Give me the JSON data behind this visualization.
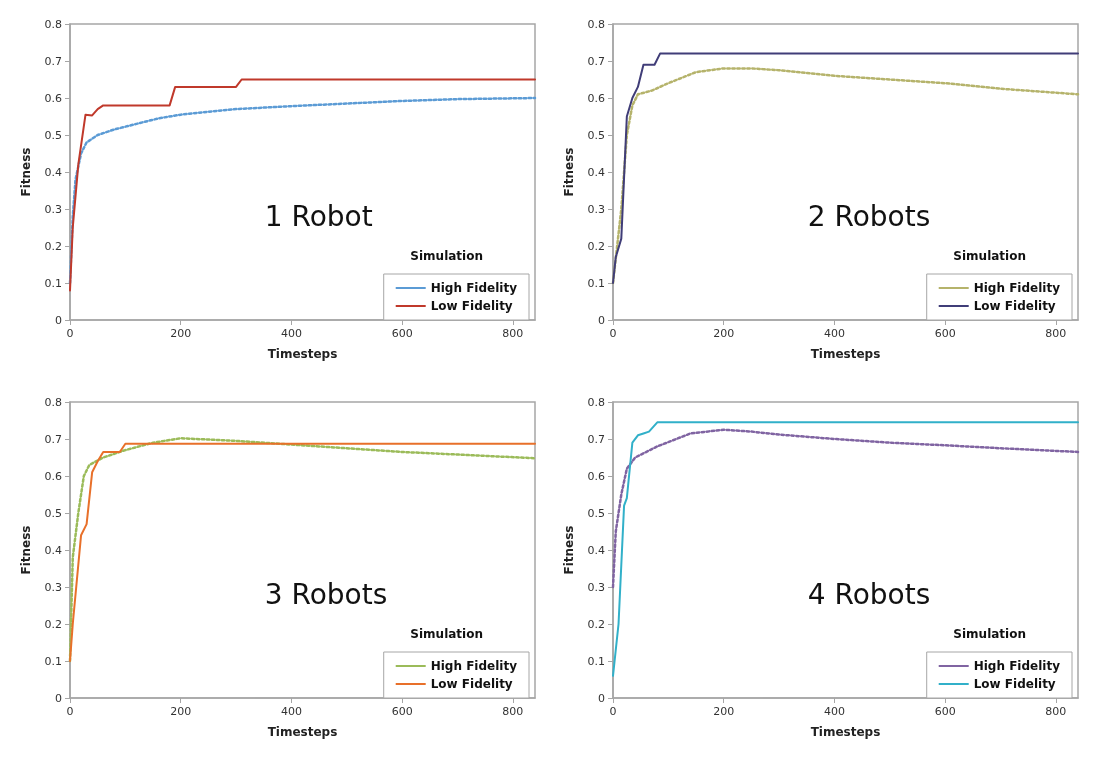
{
  "chart_data": [
    {
      "type": "line",
      "xlabel": "Timesteps",
      "ylabel": "Fitness",
      "annotations": [
        "1 Robot"
      ],
      "legend_title": "Simulation",
      "legend": "bottom right",
      "grid": false,
      "marker": "none",
      "xlim": [
        0,
        840
      ],
      "xticks": [
        0,
        200,
        400,
        600,
        800
      ],
      "ylim": [
        0,
        0.8
      ],
      "yticks": [
        0,
        0.1,
        0.2,
        0.3,
        0.4,
        0.5,
        0.6,
        0.7,
        0.8
      ],
      "series": [
        {
          "name": "High Fidelity",
          "color": "#5b9bd5",
          "line_style": "dotted",
          "x": [
            0,
            5,
            10,
            20,
            30,
            50,
            80,
            120,
            160,
            200,
            250,
            300,
            400,
            500,
            600,
            700,
            840
          ],
          "values": [
            0.1,
            0.28,
            0.38,
            0.45,
            0.48,
            0.5,
            0.515,
            0.53,
            0.545,
            0.555,
            0.563,
            0.57,
            0.578,
            0.585,
            0.592,
            0.597,
            0.6
          ]
        },
        {
          "name": "Low Fidelity",
          "color": "#c0392b",
          "line_style": "solid",
          "x": [
            0,
            5,
            15,
            28,
            40,
            50,
            60,
            180,
            190,
            300,
            310,
            840
          ],
          "values": [
            0.08,
            0.25,
            0.42,
            0.555,
            0.553,
            0.57,
            0.58,
            0.58,
            0.63,
            0.63,
            0.65,
            0.65
          ]
        }
      ]
    },
    {
      "type": "line",
      "xlabel": "Timesteps",
      "ylabel": "Fitness",
      "annotations": [
        "2 Robots"
      ],
      "legend_title": "Simulation",
      "legend": "bottom right",
      "grid": false,
      "marker": "none",
      "xlim": [
        0,
        840
      ],
      "xticks": [
        0,
        200,
        400,
        600,
        800
      ],
      "ylim": [
        0,
        0.8
      ],
      "yticks": [
        0,
        0.1,
        0.2,
        0.3,
        0.4,
        0.5,
        0.6,
        0.7,
        0.8
      ],
      "series": [
        {
          "name": "High Fidelity",
          "color": "#b5b36b",
          "line_style": "dotted",
          "x": [
            0,
            15,
            25,
            35,
            45,
            70,
            100,
            150,
            200,
            250,
            300,
            400,
            500,
            600,
            700,
            840
          ],
          "values": [
            0.1,
            0.3,
            0.5,
            0.58,
            0.61,
            0.62,
            0.64,
            0.67,
            0.68,
            0.68,
            0.675,
            0.66,
            0.65,
            0.64,
            0.625,
            0.61
          ]
        },
        {
          "name": "Low Fidelity",
          "color": "#403d78",
          "line_style": "solid",
          "x": [
            0,
            5,
            15,
            25,
            35,
            45,
            55,
            75,
            85,
            840
          ],
          "values": [
            0.1,
            0.17,
            0.22,
            0.55,
            0.6,
            0.63,
            0.69,
            0.69,
            0.72,
            0.72
          ]
        }
      ]
    },
    {
      "type": "line",
      "xlabel": "Timesteps",
      "ylabel": "Fitness",
      "annotations": [
        "3 Robots"
      ],
      "legend_title": "Simulation",
      "legend": "bottom right",
      "grid": false,
      "marker": "none",
      "xlim": [
        0,
        840
      ],
      "xticks": [
        0,
        200,
        400,
        600,
        800
      ],
      "ylim": [
        0,
        0.8
      ],
      "yticks": [
        0,
        0.1,
        0.2,
        0.3,
        0.4,
        0.5,
        0.6,
        0.7,
        0.8
      ],
      "series": [
        {
          "name": "High Fidelity",
          "color": "#9bbb59",
          "line_style": "dotted",
          "x": [
            0,
            5,
            15,
            25,
            35,
            60,
            100,
            150,
            200,
            300,
            400,
            500,
            600,
            700,
            840
          ],
          "values": [
            0.1,
            0.38,
            0.5,
            0.6,
            0.63,
            0.65,
            0.67,
            0.69,
            0.702,
            0.695,
            0.685,
            0.675,
            0.665,
            0.658,
            0.648
          ]
        },
        {
          "name": "Low Fidelity",
          "color": "#e8702a",
          "line_style": "solid",
          "x": [
            0,
            5,
            20,
            30,
            40,
            50,
            60,
            90,
            100,
            840
          ],
          "values": [
            0.1,
            0.2,
            0.44,
            0.47,
            0.61,
            0.64,
            0.665,
            0.665,
            0.687,
            0.687
          ]
        }
      ]
    },
    {
      "type": "line",
      "xlabel": "Timesteps",
      "ylabel": "Fitness",
      "annotations": [
        "4 Robots"
      ],
      "legend_title": "Simulation",
      "legend": "bottom right",
      "grid": false,
      "marker": "none",
      "xlim": [
        0,
        840
      ],
      "xticks": [
        0,
        200,
        400,
        600,
        800
      ],
      "ylim": [
        0,
        0.8
      ],
      "yticks": [
        0,
        0.1,
        0.2,
        0.3,
        0.4,
        0.5,
        0.6,
        0.7,
        0.8
      ],
      "series": [
        {
          "name": "High Fidelity",
          "color": "#8064a2",
          "line_style": "dotted",
          "x": [
            0,
            5,
            15,
            25,
            40,
            80,
            140,
            200,
            250,
            300,
            400,
            500,
            600,
            700,
            840
          ],
          "values": [
            0.3,
            0.45,
            0.55,
            0.62,
            0.65,
            0.68,
            0.715,
            0.725,
            0.72,
            0.712,
            0.7,
            0.69,
            0.683,
            0.675,
            0.665
          ]
        },
        {
          "name": "Low Fidelity",
          "color": "#31b0c9",
          "line_style": "solid",
          "x": [
            0,
            10,
            20,
            25,
            35,
            45,
            55,
            65,
            80,
            840
          ],
          "values": [
            0.06,
            0.2,
            0.52,
            0.54,
            0.69,
            0.71,
            0.715,
            0.72,
            0.745,
            0.745
          ]
        }
      ]
    }
  ]
}
